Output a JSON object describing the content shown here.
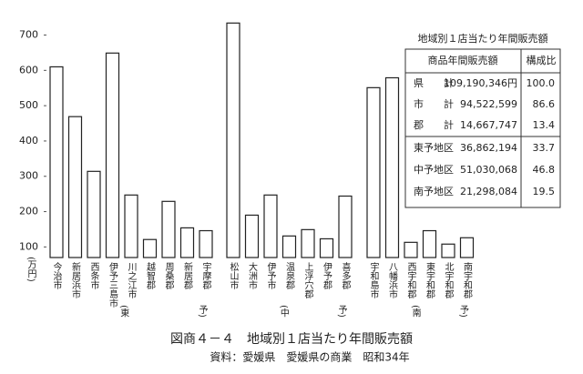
{
  "chart_data": {
    "type": "bar",
    "title": "図商４－４　地域別１店当たり年間販売額",
    "source": "資料：愛媛県　愛媛県の商業　昭和34年",
    "y_label": "(万円)",
    "ylim": [
      70,
      740
    ],
    "yticks": [
      100,
      200,
      300,
      400,
      500,
      600,
      700
    ],
    "color": "#ffffff",
    "groups": [
      {
        "open": "(東",
        "close": "予)",
        "categories": [
          "今治市",
          "新居浜市",
          "西条市",
          "伊予三島市",
          "川之江市",
          "越智郡",
          "周桑郡",
          "新居郡",
          "宇摩郡"
        ],
        "values": [
          610,
          469,
          314,
          649,
          247,
          121,
          229,
          154,
          146
        ]
      },
      {
        "open": "(中",
        "close": "予)",
        "categories": [
          "松山市",
          "大洲市",
          "伊予市",
          "温泉郡",
          "上浮穴郡",
          "伊予郡",
          "喜多郡"
        ],
        "values": [
          734,
          190,
          247,
          131,
          149,
          123,
          244
        ]
      },
      {
        "open": "(南",
        "close": "予)",
        "categories": [
          "宇和島市",
          "八幡浜市",
          "西宇和郡",
          "東宇和郡",
          "北宇和郡",
          "南宇和郡"
        ],
        "values": [
          551,
          579,
          113,
          146,
          108,
          126
        ]
      }
    ]
  },
  "table": {
    "title": "地域別１店当たり年間販売額",
    "header": [
      "商品年間販売額",
      "構成比"
    ],
    "rows": [
      [
        "県　　計",
        "109,190,346円",
        "100.0"
      ],
      [
        "市　　計",
        "94,522,599",
        "86.6"
      ],
      [
        "郡　　計",
        "14,667,747",
        "13.4"
      ],
      [
        "東予地区",
        "36,862,194",
        "33.7"
      ],
      [
        "中予地区",
        "51,030,068",
        "46.8"
      ],
      [
        "南予地区",
        "21,298,084",
        "19.5"
      ]
    ]
  }
}
